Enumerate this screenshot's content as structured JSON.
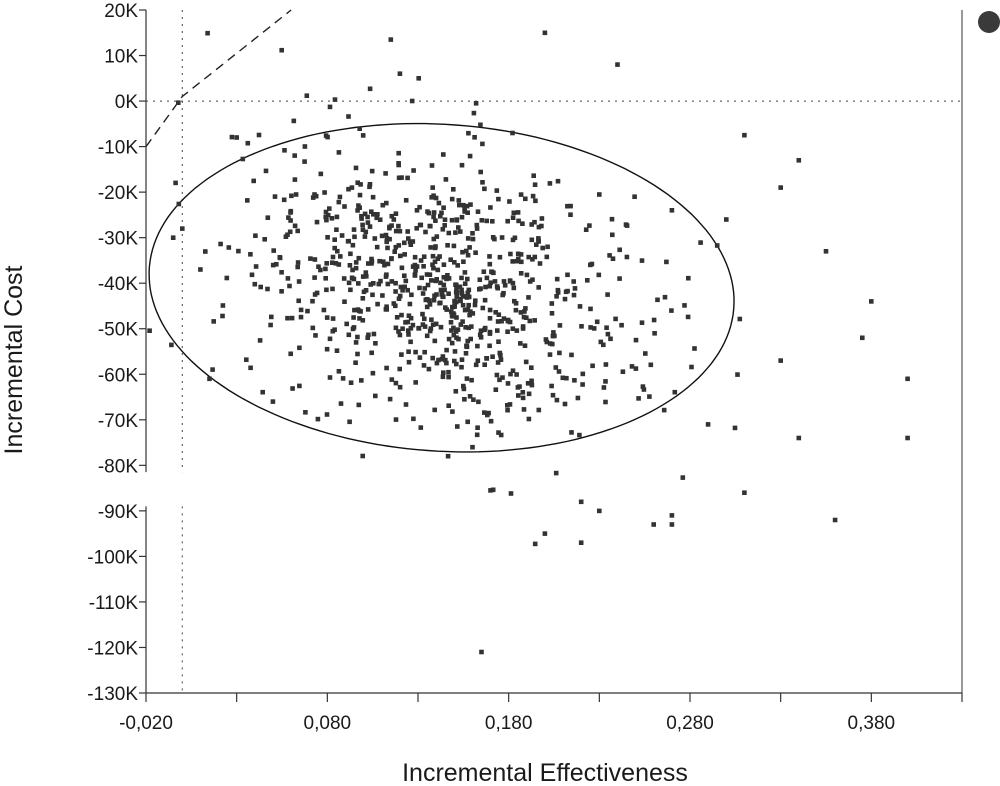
{
  "chart_data": {
    "type": "scatter",
    "title": "",
    "xlabel": "Incremental Effectiveness",
    "ylabel": "Incremental Cost",
    "xlim": [
      -0.02,
      0.43
    ],
    "ylim": [
      -130000,
      20000
    ],
    "xticks": [
      -0.02,
      0.03,
      0.08,
      0.13,
      0.18,
      0.23,
      0.28,
      0.33,
      0.38,
      0.43
    ],
    "xtick_labels": [
      "-0,020",
      "",
      "0,080",
      "",
      "0,180",
      "",
      "0,280",
      "",
      "0,380",
      ""
    ],
    "yticks": [
      20000,
      10000,
      0,
      -10000,
      -20000,
      -30000,
      -40000,
      -50000,
      -60000,
      -70000,
      -80000,
      -90000,
      -100000,
      -110000,
      -120000,
      -130000
    ],
    "ytick_labels": [
      "20K",
      "10K",
      "0K",
      "-10K",
      "-20K",
      "-30K",
      "-40K",
      "-50K",
      "-60K",
      "-70K",
      "-80K",
      "-90K",
      "-100K",
      "-110K",
      "-120K",
      "-130K"
    ],
    "grid": false,
    "reference_lines": {
      "horizontal_y": 0,
      "vertical_x": 0.0
    },
    "wtp_threshold_line": {
      "style": "dashed",
      "points": [
        [
          -0.02,
          -10000
        ],
        [
          0.0,
          1000
        ],
        [
          0.06,
          20000
        ]
      ]
    },
    "confidence_ellipse": {
      "center": [
        0.143,
        -41000
      ],
      "semi_axis_major": [
        0.156,
        -12000
      ],
      "semi_axis_minor": [
        0.041,
        34000
      ]
    },
    "series": [
      {
        "marker": "square",
        "color": "#333333",
        "outliers": [
          [
            0.115,
            13500
          ],
          [
            0.2,
            15000
          ],
          [
            0.24,
            8000
          ],
          [
            0.12,
            6000
          ],
          [
            0.03,
            -8000
          ],
          [
            0.31,
            -7500
          ],
          [
            0.34,
            -13000
          ],
          [
            0.33,
            -19000
          ],
          [
            0.355,
            -33000
          ],
          [
            0.38,
            -44000
          ],
          [
            0.375,
            -52000
          ],
          [
            0.33,
            -57000
          ],
          [
            0.4,
            -61000
          ],
          [
            0.34,
            -74000
          ],
          [
            0.4,
            -74000
          ],
          [
            0.29,
            -71000
          ],
          [
            0.31,
            -86000
          ],
          [
            0.36,
            -92000
          ],
          [
            0.22,
            -88000
          ],
          [
            0.22,
            -97000
          ],
          [
            0.23,
            -90000
          ],
          [
            0.2,
            -95000
          ],
          [
            0.165,
            -121000
          ],
          [
            0.015,
            -61000
          ],
          [
            0.01,
            -37000
          ],
          [
            0.0,
            -28000
          ],
          [
            -0.005,
            -30000
          ],
          [
            0.27,
            -24000
          ],
          [
            0.3,
            -26000
          ],
          [
            0.26,
            -93000
          ],
          [
            0.27,
            -91000
          ],
          [
            0.27,
            -93000
          ],
          [
            0.17,
            -85500
          ],
          [
            0.05,
            -66000
          ]
        ],
        "cloud": {
          "count": 860,
          "mean": [
            0.143,
            -41000
          ],
          "sd": [
            0.055,
            15000
          ]
        }
      }
    ],
    "legend": {
      "placement": "top-right",
      "marker_color": "#3a3a3a"
    }
  }
}
